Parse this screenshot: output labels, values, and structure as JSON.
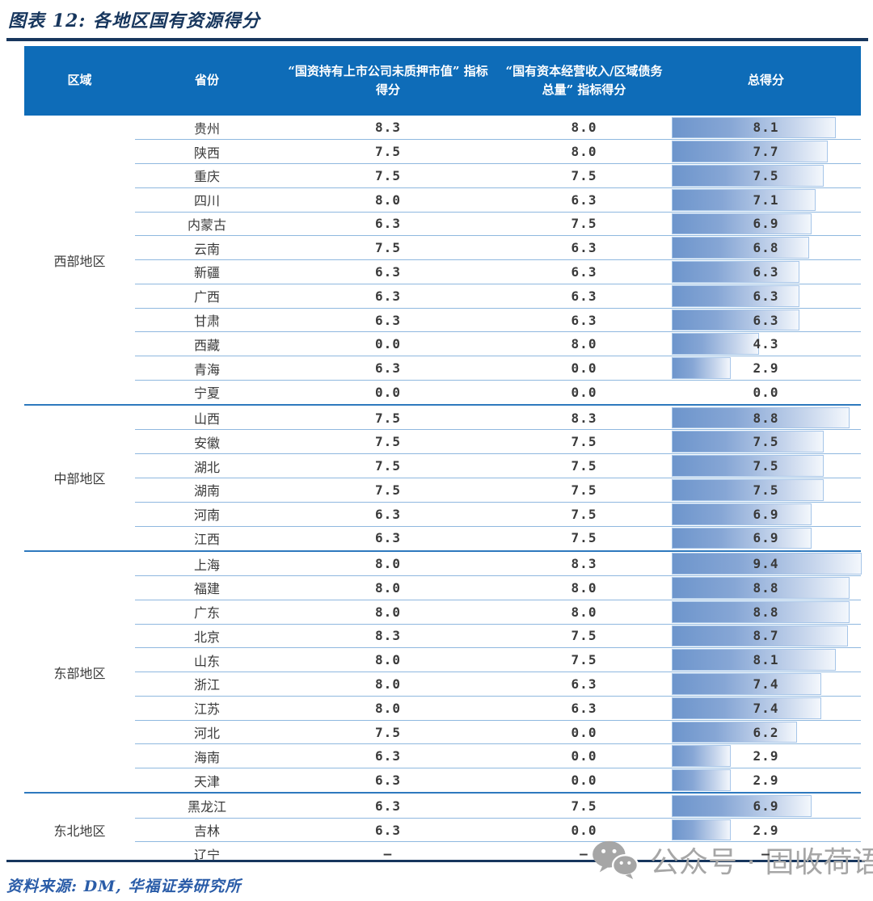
{
  "figure": {
    "title": "图表 12: 各地区国有资源得分",
    "source": "资料来源: DM, 华福证券研究所"
  },
  "watermark": {
    "icon": "wechat-icon",
    "text": "公众号 · 固收荷语",
    "color": "#A6A6A6"
  },
  "colors": {
    "title_navy": "#17365D",
    "header_bg": "#0E6CB8",
    "header_text": "#FFFFFF",
    "row_divider": "#8FB8DF",
    "region_divider": "#2E79BE",
    "bar_start": "#6D95CC",
    "bar_end": "#F3F7FC",
    "bar_border": "#A6C5E8",
    "body_text": "#3A3A3A",
    "source_blue": "#2A5CA8"
  },
  "table": {
    "headers": [
      "区域",
      "省份",
      "“国资持有上市公司未质押市值” 指标得分",
      "“国有资本经营收入/区域债务总量” 指标得分",
      "总得分"
    ],
    "bar_max": 9.4,
    "regions": [
      {
        "name": "西部地区",
        "rows": [
          {
            "province": "贵州",
            "score1": "8.3",
            "score2": "8.0",
            "total": "8.1",
            "bar": 8.1
          },
          {
            "province": "陕西",
            "score1": "7.5",
            "score2": "8.0",
            "total": "7.7",
            "bar": 7.7
          },
          {
            "province": "重庆",
            "score1": "7.5",
            "score2": "7.5",
            "total": "7.5",
            "bar": 7.5
          },
          {
            "province": "四川",
            "score1": "8.0",
            "score2": "6.3",
            "total": "7.1",
            "bar": 7.1
          },
          {
            "province": "内蒙古",
            "score1": "6.3",
            "score2": "7.5",
            "total": "6.9",
            "bar": 6.9
          },
          {
            "province": "云南",
            "score1": "7.5",
            "score2": "6.3",
            "total": "6.8",
            "bar": 6.8
          },
          {
            "province": "新疆",
            "score1": "6.3",
            "score2": "6.3",
            "total": "6.3",
            "bar": 6.3
          },
          {
            "province": "广西",
            "score1": "6.3",
            "score2": "6.3",
            "total": "6.3",
            "bar": 6.3
          },
          {
            "province": "甘肃",
            "score1": "6.3",
            "score2": "6.3",
            "total": "6.3",
            "bar": 6.3
          },
          {
            "province": "西藏",
            "score1": "0.0",
            "score2": "8.0",
            "total": "4.3",
            "bar": 4.3
          },
          {
            "province": "青海",
            "score1": "6.3",
            "score2": "0.0",
            "total": "2.9",
            "bar": 2.9
          },
          {
            "province": "宁夏",
            "score1": "0.0",
            "score2": "0.0",
            "total": "0.0",
            "bar": 0
          }
        ]
      },
      {
        "name": "中部地区",
        "rows": [
          {
            "province": "山西",
            "score1": "7.5",
            "score2": "8.3",
            "total": "8.8",
            "bar": 8.8
          },
          {
            "province": "安徽",
            "score1": "7.5",
            "score2": "7.5",
            "total": "7.5",
            "bar": 7.5
          },
          {
            "province": "湖北",
            "score1": "7.5",
            "score2": "7.5",
            "total": "7.5",
            "bar": 7.5
          },
          {
            "province": "湖南",
            "score1": "7.5",
            "score2": "7.5",
            "total": "7.5",
            "bar": 7.5
          },
          {
            "province": "河南",
            "score1": "6.3",
            "score2": "7.5",
            "total": "6.9",
            "bar": 6.9
          },
          {
            "province": "江西",
            "score1": "6.3",
            "score2": "7.5",
            "total": "6.9",
            "bar": 6.9
          }
        ]
      },
      {
        "name": "东部地区",
        "rows": [
          {
            "province": "上海",
            "score1": "8.0",
            "score2": "8.3",
            "total": "9.4",
            "bar": 9.4
          },
          {
            "province": "福建",
            "score1": "8.0",
            "score2": "8.0",
            "total": "8.8",
            "bar": 8.8
          },
          {
            "province": "广东",
            "score1": "8.0",
            "score2": "8.0",
            "total": "8.8",
            "bar": 8.8
          },
          {
            "province": "北京",
            "score1": "8.3",
            "score2": "7.5",
            "total": "8.7",
            "bar": 8.7
          },
          {
            "province": "山东",
            "score1": "8.0",
            "score2": "7.5",
            "total": "8.1",
            "bar": 8.1
          },
          {
            "province": "浙江",
            "score1": "8.0",
            "score2": "6.3",
            "total": "7.4",
            "bar": 7.4
          },
          {
            "province": "江苏",
            "score1": "8.0",
            "score2": "6.3",
            "total": "7.4",
            "bar": 7.4
          },
          {
            "province": "河北",
            "score1": "7.5",
            "score2": "0.0",
            "total": "6.2",
            "bar": 6.2
          },
          {
            "province": "海南",
            "score1": "6.3",
            "score2": "0.0",
            "total": "2.9",
            "bar": 2.9
          },
          {
            "province": "天津",
            "score1": "6.3",
            "score2": "0.0",
            "total": "2.9",
            "bar": 2.9
          }
        ]
      },
      {
        "name": "东北地区",
        "rows": [
          {
            "province": "黑龙江",
            "score1": "6.3",
            "score2": "7.5",
            "total": "6.9",
            "bar": 6.9
          },
          {
            "province": "吉林",
            "score1": "6.3",
            "score2": "0.0",
            "total": "2.9",
            "bar": 2.9
          },
          {
            "province": "辽宁",
            "score1": "–",
            "score2": "–",
            "total": "–",
            "bar": 0
          }
        ]
      }
    ]
  },
  "chart_data": {
    "type": "table",
    "title": "图表 12: 各地区国有资源得分",
    "columns": [
      "区域",
      "省份",
      "“国资持有上市公司未质押市值”指标得分",
      "“国有资本经营收入/区域债务总量”指标得分",
      "总得分"
    ],
    "bar_column": "总得分",
    "bar_range": [
      0,
      9.4
    ],
    "rows": [
      [
        "西部地区",
        "贵州",
        8.3,
        8.0,
        8.1
      ],
      [
        "西部地区",
        "陕西",
        7.5,
        8.0,
        7.7
      ],
      [
        "西部地区",
        "重庆",
        7.5,
        7.5,
        7.5
      ],
      [
        "西部地区",
        "四川",
        8.0,
        6.3,
        7.1
      ],
      [
        "西部地区",
        "内蒙古",
        6.3,
        7.5,
        6.9
      ],
      [
        "西部地区",
        "云南",
        7.5,
        6.3,
        6.8
      ],
      [
        "西部地区",
        "新疆",
        6.3,
        6.3,
        6.3
      ],
      [
        "西部地区",
        "广西",
        6.3,
        6.3,
        6.3
      ],
      [
        "西部地区",
        "甘肃",
        6.3,
        6.3,
        6.3
      ],
      [
        "西部地区",
        "西藏",
        0.0,
        8.0,
        4.3
      ],
      [
        "西部地区",
        "青海",
        6.3,
        0.0,
        2.9
      ],
      [
        "西部地区",
        "宁夏",
        0.0,
        0.0,
        0.0
      ],
      [
        "中部地区",
        "山西",
        7.5,
        8.3,
        8.8
      ],
      [
        "中部地区",
        "安徽",
        7.5,
        7.5,
        7.5
      ],
      [
        "中部地区",
        "湖北",
        7.5,
        7.5,
        7.5
      ],
      [
        "中部地区",
        "湖南",
        7.5,
        7.5,
        7.5
      ],
      [
        "中部地区",
        "河南",
        6.3,
        7.5,
        6.9
      ],
      [
        "中部地区",
        "江西",
        6.3,
        7.5,
        6.9
      ],
      [
        "东部地区",
        "上海",
        8.0,
        8.3,
        9.4
      ],
      [
        "东部地区",
        "福建",
        8.0,
        8.0,
        8.8
      ],
      [
        "东部地区",
        "广东",
        8.0,
        8.0,
        8.8
      ],
      [
        "东部地区",
        "北京",
        8.3,
        7.5,
        8.7
      ],
      [
        "东部地区",
        "山东",
        8.0,
        7.5,
        8.1
      ],
      [
        "东部地区",
        "浙江",
        8.0,
        6.3,
        7.4
      ],
      [
        "东部地区",
        "江苏",
        8.0,
        6.3,
        7.4
      ],
      [
        "东部地区",
        "河北",
        7.5,
        0.0,
        6.2
      ],
      [
        "东部地区",
        "海南",
        6.3,
        0.0,
        2.9
      ],
      [
        "东部地区",
        "天津",
        6.3,
        0.0,
        2.9
      ],
      [
        "东北地区",
        "黑龙江",
        6.3,
        7.5,
        6.9
      ],
      [
        "东北地区",
        "吉林",
        6.3,
        0.0,
        2.9
      ],
      [
        "东北地区",
        "辽宁",
        "–",
        "–",
        "–"
      ]
    ]
  }
}
